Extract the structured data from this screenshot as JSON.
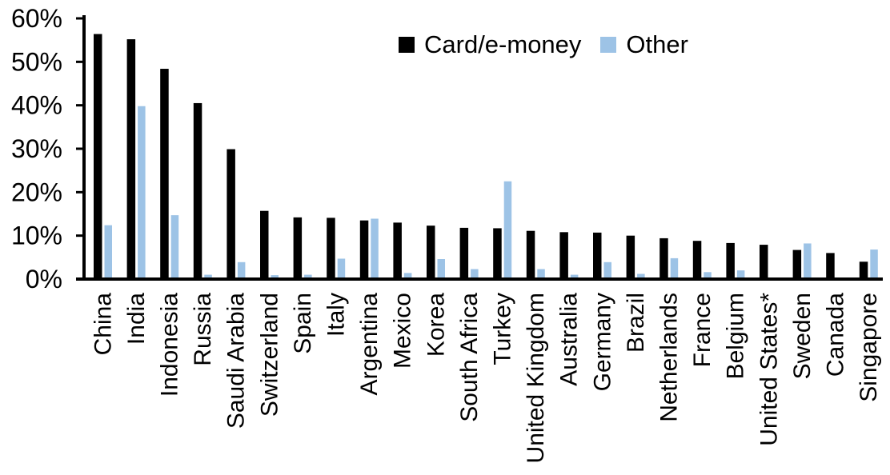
{
  "chart_data": {
    "type": "bar",
    "title": "",
    "xlabel": "",
    "ylabel": "",
    "ylim": [
      0,
      60
    ],
    "yticks": [
      0,
      10,
      20,
      30,
      40,
      50,
      60
    ],
    "ytick_labels": [
      "0%",
      "10%",
      "20%",
      "30%",
      "40%",
      "50%",
      "60%"
    ],
    "grid": false,
    "legend_position": "top-center",
    "axis_color": "#000000",
    "categories": [
      "China",
      "India",
      "Indonesia",
      "Russia",
      "Saudi Arabia",
      "Switzerland",
      "Spain",
      "Italy",
      "Argentina",
      "Mexico",
      "Korea",
      "South Africa",
      "Turkey",
      "United Kingdom",
      "Australia",
      "Germany",
      "Brazil",
      "Netherlands",
      "France",
      "Belgium",
      "United States*",
      "Sweden",
      "Canada",
      "Singapore"
    ],
    "series": [
      {
        "name": "Card/e-money",
        "color": "#000000",
        "values": [
          56.4,
          55.2,
          48.4,
          40.5,
          29.9,
          15.7,
          14.2,
          14.1,
          13.5,
          13.0,
          12.3,
          11.8,
          11.7,
          11.1,
          10.8,
          10.7,
          10.0,
          9.4,
          8.8,
          8.3,
          7.9,
          6.7,
          6.0,
          4.0
        ]
      },
      {
        "name": "Other",
        "color": "#9DC3E6",
        "values": [
          12.4,
          39.8,
          14.7,
          1.0,
          3.9,
          0.9,
          1.0,
          4.7,
          13.9,
          1.4,
          4.6,
          2.3,
          22.5,
          2.3,
          1.0,
          3.9,
          1.2,
          4.8,
          1.6,
          2.0,
          0.2,
          8.2,
          0.0,
          6.8
        ]
      }
    ]
  }
}
